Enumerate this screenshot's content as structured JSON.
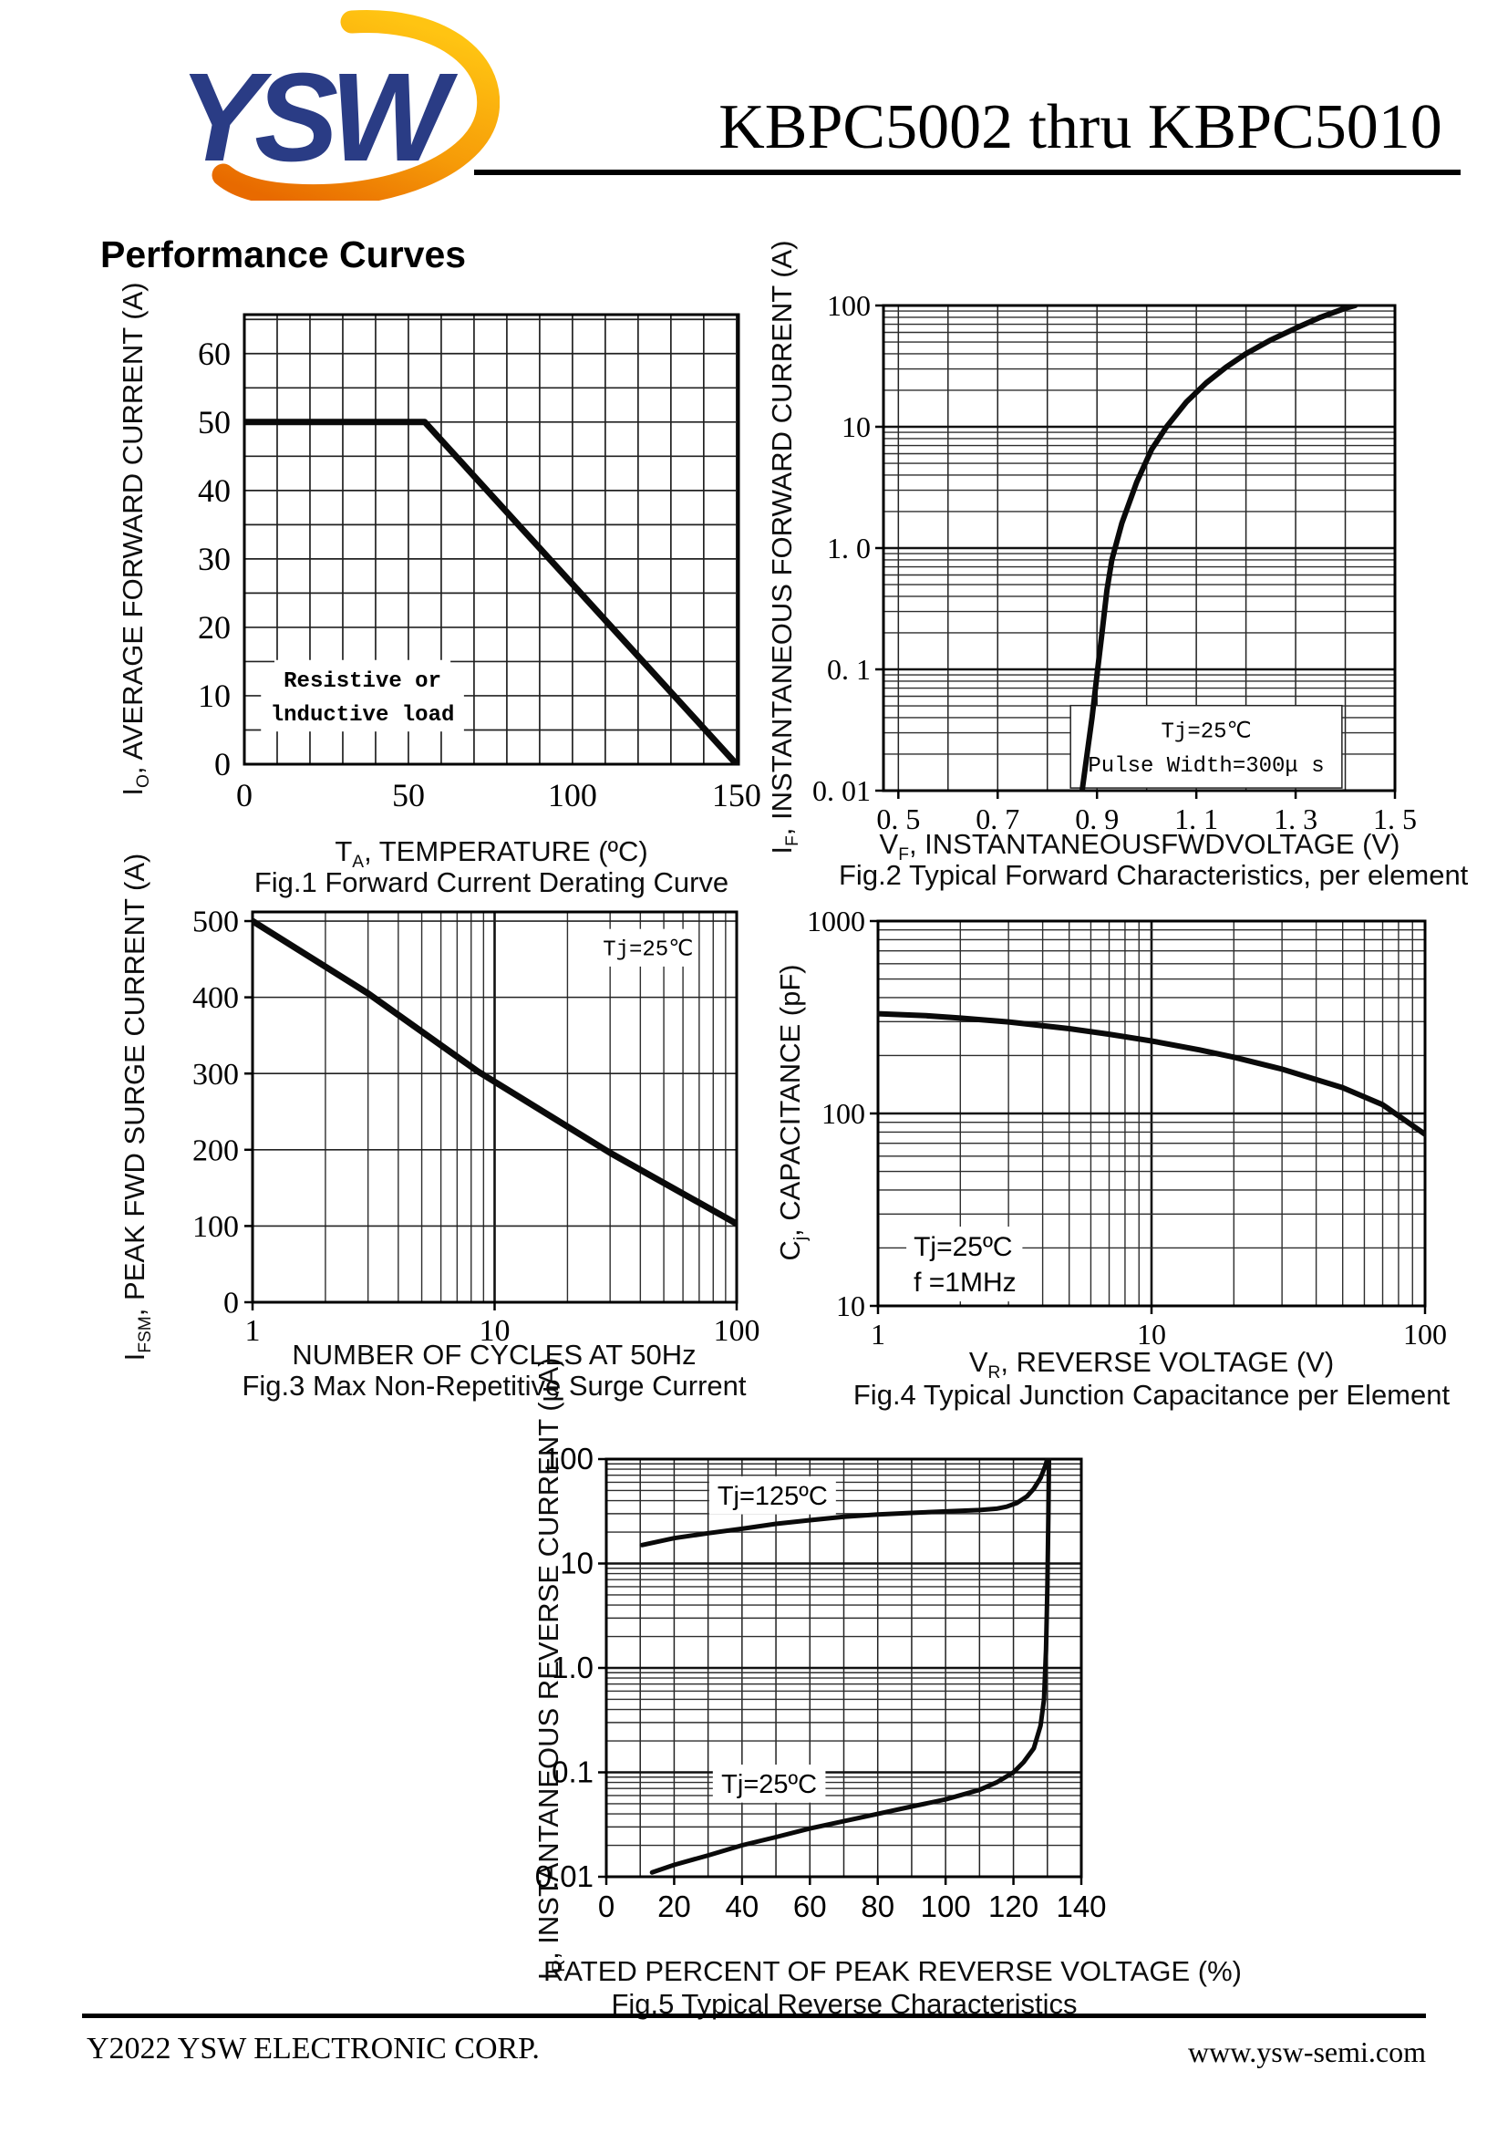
{
  "header": {
    "title": "KBPC5002 thru KBPC5010",
    "logo_text": "YSW",
    "logo_blue": "#2a3c85",
    "logo_orange_light": "#ffc412",
    "logo_orange_dark": "#e86a00"
  },
  "section_heading": "Performance Curves",
  "footer": {
    "left": "Y2022 YSW ELECTRONIC CORP.",
    "right": "www.ysw-semi.com"
  },
  "chart_data": [
    {
      "id": "fig1",
      "type": "line",
      "title": "Fig.1 Forward Current Derating Curve",
      "x": {
        "scale": "linear",
        "min": 0,
        "max": 150.6,
        "ticks": [
          0,
          50,
          100,
          150
        ],
        "tick_labels": [
          "0",
          "50",
          "100",
          "150"
        ],
        "grid_step": 10,
        "grid_start": 0,
        "label": {
          "pre": "T",
          "sub": "A",
          "rest": ", TEMPERATURE (ºC)"
        }
      },
      "y": {
        "scale": "linear",
        "min": 0,
        "max": 65.7,
        "ticks": [
          0,
          10,
          20,
          30,
          40,
          50,
          60
        ],
        "tick_labels": [
          "0",
          "10",
          "20",
          "30",
          "40",
          "50",
          "60"
        ],
        "grid_step": 5,
        "grid_start": 0,
        "label": {
          "pre": "I",
          "sub": "O",
          "rest": ", AVERAGE FORWARD CURRENT (A)"
        }
      },
      "series": [
        {
          "name": "derating",
          "points": [
            [
              0,
              50
            ],
            [
              55,
              50
            ],
            [
              150,
              0
            ]
          ]
        }
      ],
      "annotations": [
        {
          "lines": [
            "Resistive or",
            "lnductive load"
          ],
          "x": 36,
          "y": 10,
          "align": "center",
          "font": "mono",
          "size": 24,
          "bold": true,
          "box": false
        }
      ]
    },
    {
      "id": "fig2",
      "type": "line",
      "title": "Fig.2 Typical Forward Characteristics, per element",
      "x": {
        "scale": "linear",
        "min": 0.47,
        "max": 1.5,
        "ticks": [
          0.5,
          0.7,
          0.9,
          1.1,
          1.3,
          1.5
        ],
        "tick_labels": [
          "0. 5",
          "0. 7",
          "0. 9",
          "1. 1",
          "1. 3",
          "1. 5"
        ],
        "grid_step": 0.1,
        "grid_start": 0.5,
        "label": {
          "pre": "V",
          "sub": "F",
          "rest": ", INSTANTANEOUSFWDVOLTAGE (V)"
        }
      },
      "y": {
        "scale": "log",
        "min": 0.01,
        "max": 100,
        "ticks": [
          100,
          10,
          1,
          0.1,
          0.01
        ],
        "tick_labels": [
          "100",
          "10",
          "1. 0",
          "0. 1",
          "0. 01"
        ],
        "label": {
          "pre": "I",
          "sub": "F",
          "rest": ", INSTANTANEOUS FORWARD CURRENT (A)"
        }
      },
      "series": [
        {
          "name": "forward voltage 25C",
          "points": [
            [
              0.87,
              0.01
            ],
            [
              0.88,
              0.02
            ],
            [
              0.89,
              0.04
            ],
            [
              0.9,
              0.09
            ],
            [
              0.91,
              0.2
            ],
            [
              0.92,
              0.45
            ],
            [
              0.93,
              0.8
            ],
            [
              0.95,
              1.6
            ],
            [
              0.98,
              3.5
            ],
            [
              1.01,
              6.5
            ],
            [
              1.04,
              10
            ],
            [
              1.08,
              16
            ],
            [
              1.12,
              23
            ],
            [
              1.16,
              31
            ],
            [
              1.2,
              40
            ],
            [
              1.25,
              52
            ],
            [
              1.3,
              65
            ],
            [
              1.35,
              80
            ],
            [
              1.4,
              95
            ],
            [
              1.42,
              100
            ]
          ]
        }
      ],
      "annotations": [
        {
          "lines": [
            "Tj=25℃",
            "Pulse Width=300μ s"
          ],
          "x": 1.12,
          "y": 0.023,
          "align": "center",
          "font": "mono",
          "size": 24,
          "bold": false,
          "box": true
        }
      ]
    },
    {
      "id": "fig3",
      "type": "line",
      "title": "Fig.3 Max Non-Repetitive Surge Current",
      "x": {
        "scale": "log",
        "min": 1,
        "max": 100,
        "ticks": [
          1,
          10,
          100
        ],
        "tick_labels": [
          "1",
          "10",
          "100"
        ],
        "label": {
          "pre": "",
          "sub": "",
          "rest": "NUMBER OF CYCLES AT 50Hz"
        }
      },
      "y": {
        "scale": "linear",
        "min": 0,
        "max": 512,
        "ticks": [
          0,
          100,
          200,
          300,
          400,
          500
        ],
        "tick_labels": [
          "0",
          "100",
          "200",
          "300",
          "400",
          "500"
        ],
        "grid_step": 100,
        "grid_start": 0,
        "label": {
          "pre": "I",
          "sub": "FSM",
          "rest": ", PEAK FWD SURGE CURRENT (A)"
        }
      },
      "series": [
        {
          "name": "surge",
          "points": [
            [
              1,
              500
            ],
            [
              3,
              405
            ],
            [
              8.5,
              303
            ],
            [
              30,
              196
            ],
            [
              100,
              103
            ]
          ]
        }
      ],
      "annotations": [
        {
          "lines": [
            "Tj=25℃"
          ],
          "x": 43,
          "y": 465,
          "align": "center",
          "font": "mono",
          "size": 24,
          "bold": false,
          "box": false
        }
      ]
    },
    {
      "id": "fig4",
      "type": "line",
      "title": "Fig.4 Typical Junction Capacitance per Element",
      "x": {
        "scale": "log",
        "min": 1,
        "max": 100,
        "ticks": [
          1,
          10,
          100
        ],
        "tick_labels": [
          "1",
          "10",
          "100"
        ],
        "label": {
          "pre": "V",
          "sub": "R",
          "rest": ", REVERSE VOLTAGE (V)"
        }
      },
      "y": {
        "scale": "log",
        "min": 10,
        "max": 1000,
        "ticks": [
          1000,
          100,
          10
        ],
        "tick_labels": [
          "1000",
          "100",
          "10"
        ],
        "label": {
          "pre": "C",
          "sub": "j",
          "rest": ", CAPACITANCE (pF)"
        }
      },
      "series": [
        {
          "name": "junction capacitance",
          "points": [
            [
              1,
              330
            ],
            [
              1.5,
              322
            ],
            [
              2,
              313
            ],
            [
              3,
              299
            ],
            [
              5,
              276
            ],
            [
              7,
              258
            ],
            [
              10,
              238
            ],
            [
              15,
              214
            ],
            [
              20,
              196
            ],
            [
              30,
              170
            ],
            [
              50,
              136
            ],
            [
              70,
              111
            ],
            [
              100,
              78
            ]
          ]
        }
      ],
      "annotations": [
        {
          "lines": [
            "Tj=25ºC",
            "f =1MHz"
          ],
          "x": 1.35,
          "y": 16.5,
          "align": "left",
          "font": "sans",
          "size": 30,
          "bold": false,
          "box": false
        }
      ]
    },
    {
      "id": "fig5",
      "type": "line",
      "title": "Fig.5 Typical Reverse Characteristics",
      "x": {
        "scale": "linear",
        "min": 0,
        "max": 140,
        "ticks": [
          0,
          20,
          40,
          60,
          80,
          100,
          120,
          140
        ],
        "tick_labels": [
          "0",
          "20",
          "40",
          "60",
          "80",
          "100",
          "120",
          "140"
        ],
        "grid_step": 10,
        "grid_start": 0,
        "label": {
          "pre": "",
          "sub": "",
          "rest": "RATED PERCENT OF PEAK REVERSE VOLTAGE (%)"
        }
      },
      "y": {
        "scale": "log",
        "min": 0.01,
        "max": 100,
        "ticks": [
          100,
          10,
          1,
          0.1,
          0.01
        ],
        "tick_labels": [
          "100",
          "10",
          "1.0",
          "0.1",
          "0.01"
        ],
        "label": {
          "pre": "I",
          "sub": "R",
          "rest": ", INSTANTANEOUS REVERSE CURRENT (μA)"
        }
      },
      "series": [
        {
          "name": "Tj=125ºC",
          "points": [
            [
              10.5,
              15
            ],
            [
              20,
              17.5
            ],
            [
              30,
              19.5
            ],
            [
              40,
              21.5
            ],
            [
              50,
              24
            ],
            [
              60,
              26
            ],
            [
              70,
              28
            ],
            [
              80,
              29.5
            ],
            [
              90,
              30.5
            ],
            [
              100,
              31.5
            ],
            [
              110,
              32.5
            ],
            [
              115,
              33.5
            ],
            [
              118,
              35
            ],
            [
              121,
              38
            ],
            [
              124,
              44
            ],
            [
              126,
              52
            ],
            [
              128,
              66
            ],
            [
              129.5,
              88
            ],
            [
              130.5,
              115
            ]
          ]
        },
        {
          "name": "Tj=25ºC",
          "points": [
            [
              13.5,
              0.011
            ],
            [
              20,
              0.013
            ],
            [
              30,
              0.016
            ],
            [
              40,
              0.02
            ],
            [
              50,
              0.024
            ],
            [
              60,
              0.029
            ],
            [
              70,
              0.034
            ],
            [
              80,
              0.04
            ],
            [
              90,
              0.047
            ],
            [
              100,
              0.055
            ],
            [
              110,
              0.068
            ],
            [
              115,
              0.08
            ],
            [
              120,
              0.1
            ],
            [
              123,
              0.125
            ],
            [
              126,
              0.17
            ],
            [
              128,
              0.28
            ],
            [
              129,
              0.5
            ],
            [
              129.6,
              1.5
            ],
            [
              130,
              6
            ],
            [
              130.3,
              30
            ],
            [
              130.5,
              115
            ]
          ]
        }
      ],
      "annotations": [
        {
          "lines": [
            "Tj=125ºC"
          ],
          "x": 49,
          "y": 45,
          "align": "center",
          "font": "sans",
          "size": 29,
          "bold": false,
          "box": false
        },
        {
          "lines": [
            "Tj=25ºC"
          ],
          "x": 48,
          "y": 0.078,
          "align": "center",
          "font": "sans",
          "size": 29,
          "bold": false,
          "box": false
        }
      ]
    }
  ]
}
